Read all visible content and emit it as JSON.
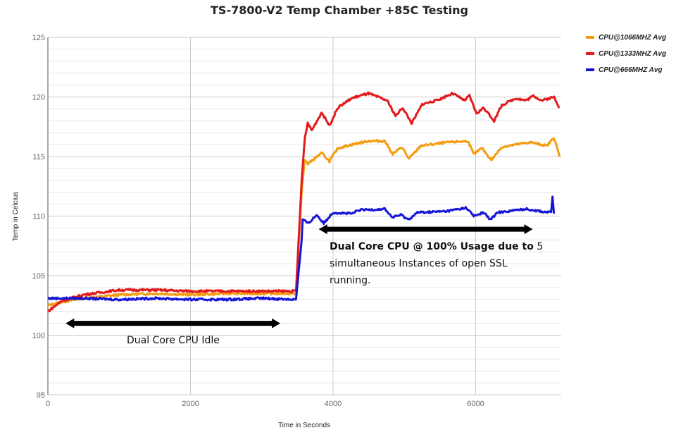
{
  "chart_data": {
    "type": "line",
    "title": "TS-7800-V2 Temp Chamber +85C Testing",
    "xlabel": "Time in Seconds",
    "ylabel": "Temp in Celcius",
    "xlim": [
      0,
      7200
    ],
    "ylim": [
      95,
      125
    ],
    "x_ticks": [
      "0",
      "2000",
      "4000",
      "6000"
    ],
    "y_ticks": [
      "95",
      "100",
      "105",
      "110",
      "115",
      "120",
      "125"
    ],
    "grid": true,
    "legend_position": "right",
    "series": [
      {
        "name": "CPU@1066MHZ Avg",
        "color": "#f39c12",
        "points": [
          [
            0,
            102.5
          ],
          [
            200,
            102.8
          ],
          [
            500,
            103.1
          ],
          [
            1000,
            103.4
          ],
          [
            1500,
            103.5
          ],
          [
            2000,
            103.4
          ],
          [
            2500,
            103.5
          ],
          [
            3000,
            103.5
          ],
          [
            3480,
            103.5
          ],
          [
            3560,
            112
          ],
          [
            3603,
            114.7
          ],
          [
            3650,
            114.4
          ],
          [
            3840,
            115.3
          ],
          [
            3949,
            114.6
          ],
          [
            4067,
            115.7
          ],
          [
            4265,
            116.0
          ],
          [
            4492,
            116.3
          ],
          [
            4728,
            116.3
          ],
          [
            4837,
            115.2
          ],
          [
            4965,
            115.8
          ],
          [
            5064,
            114.8
          ],
          [
            5232,
            115.9
          ],
          [
            5627,
            116.2
          ],
          [
            5893,
            116.3
          ],
          [
            5972,
            115.2
          ],
          [
            6090,
            115.7
          ],
          [
            6219,
            114.7
          ],
          [
            6367,
            115.8
          ],
          [
            6762,
            116.2
          ],
          [
            6999,
            115.9
          ],
          [
            7098,
            116.6
          ],
          [
            7177,
            115.0
          ]
        ]
      },
      {
        "name": "CPU@1333MHZ Avg",
        "color": "#e31a1c",
        "points": [
          [
            0,
            102.0
          ],
          [
            200,
            102.9
          ],
          [
            500,
            103.4
          ],
          [
            1000,
            103.8
          ],
          [
            1500,
            103.8
          ],
          [
            2000,
            103.7
          ],
          [
            2500,
            103.7
          ],
          [
            3000,
            103.7
          ],
          [
            3480,
            103.7
          ],
          [
            3560,
            113
          ],
          [
            3603,
            116.5
          ],
          [
            3643,
            117.8
          ],
          [
            3702,
            117.2
          ],
          [
            3840,
            118.7
          ],
          [
            3949,
            117.6
          ],
          [
            4067,
            119.1
          ],
          [
            4265,
            119.9
          ],
          [
            4492,
            120.3
          ],
          [
            4758,
            119.7
          ],
          [
            4877,
            118.4
          ],
          [
            4975,
            119.1
          ],
          [
            5104,
            117.8
          ],
          [
            5252,
            119.4
          ],
          [
            5449,
            119.7
          ],
          [
            5676,
            120.3
          ],
          [
            5844,
            119.7
          ],
          [
            5913,
            120.1
          ],
          [
            6012,
            118.6
          ],
          [
            6111,
            119.1
          ],
          [
            6259,
            118.0
          ],
          [
            6367,
            119.3
          ],
          [
            6565,
            119.9
          ],
          [
            6703,
            119.7
          ],
          [
            6811,
            120.1
          ],
          [
            6930,
            119.7
          ],
          [
            7098,
            120.0
          ],
          [
            7177,
            119.1
          ]
        ]
      },
      {
        "name": "CPU@666MHZ Avg",
        "color": "#1515d8",
        "points": [
          [
            0,
            103.1
          ],
          [
            500,
            103.1
          ],
          [
            1000,
            103.0
          ],
          [
            1500,
            103.1
          ],
          [
            2000,
            103.0
          ],
          [
            2500,
            103.0
          ],
          [
            3000,
            103.1
          ],
          [
            3480,
            103.0
          ],
          [
            3560,
            108
          ],
          [
            3573,
            109.7
          ],
          [
            3652,
            109.4
          ],
          [
            3771,
            110.1
          ],
          [
            3869,
            109.4
          ],
          [
            3998,
            110.3
          ],
          [
            4265,
            110.2
          ],
          [
            4363,
            110.5
          ],
          [
            4728,
            110.6
          ],
          [
            4827,
            109.9
          ],
          [
            4955,
            110.1
          ],
          [
            5054,
            109.7
          ],
          [
            5183,
            110.3
          ],
          [
            5577,
            110.4
          ],
          [
            5873,
            110.7
          ],
          [
            5972,
            110.0
          ],
          [
            6111,
            110.3
          ],
          [
            6209,
            109.7
          ],
          [
            6308,
            110.3
          ],
          [
            6703,
            110.6
          ],
          [
            7029,
            110.3
          ],
          [
            7058,
            110.4
          ],
          [
            7078,
            111.6
          ],
          [
            7098,
            110.2
          ]
        ]
      }
    ],
    "annotations": [
      {
        "text": "Dual Core CPU Idle",
        "arrow_x": [
          250,
          3260
        ],
        "arrow_y": 101.0
      },
      {
        "text_bold": "Dual Core CPU @ 100% Usage due to",
        "text": "5",
        "line2": "simultaneous Instances of open SSL",
        "line3": "running.",
        "arrow_x": [
          3800,
          6800
        ],
        "arrow_y": 108.9
      }
    ]
  }
}
